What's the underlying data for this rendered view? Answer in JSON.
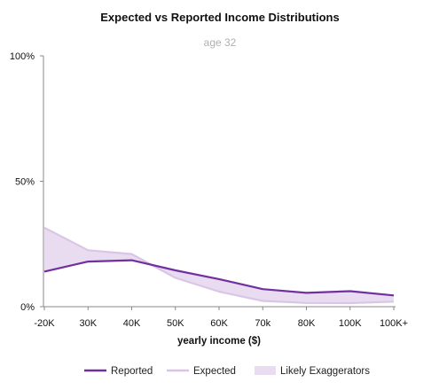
{
  "chart_data": {
    "type": "line",
    "title": "Expected vs Reported Income Distributions",
    "subtitle": "age 32",
    "xlabel": "yearly income ($)",
    "ylabel": "",
    "categories": [
      "-20K",
      "30K",
      "40K",
      "50K",
      "60K",
      "70k",
      "80K",
      "100K",
      "100K+"
    ],
    "y_ticks": [
      "0%",
      "50%",
      "100%"
    ],
    "ylim": [
      0,
      100
    ],
    "series": [
      {
        "name": "Reported",
        "color": "#7030a0",
        "values": [
          14,
          18,
          18.5,
          14.5,
          11,
          7,
          5.5,
          6.2,
          4.5
        ]
      },
      {
        "name": "Expected",
        "color": "#d9c6e6",
        "values": [
          31.5,
          22.5,
          21,
          11.5,
          6,
          2.3,
          1.5,
          1.4,
          2
        ]
      }
    ],
    "area": {
      "name": "Likely Exaggerators",
      "color": "#e9dcf1",
      "between": [
        "Reported",
        "Expected"
      ]
    },
    "grid": false,
    "legend_position": "bottom"
  }
}
